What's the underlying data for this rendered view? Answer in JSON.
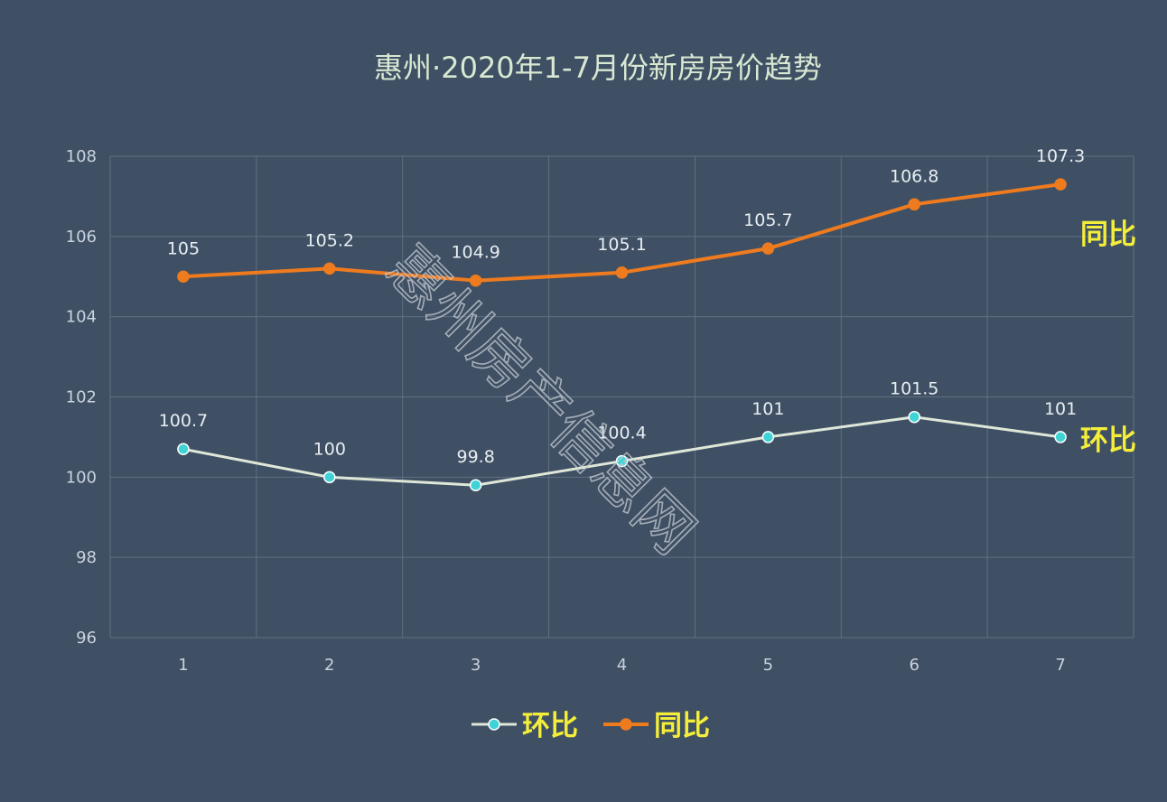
{
  "watermark": "惠州房产信息网",
  "colors": {
    "background": "#3f5064",
    "grid": "#5f7081",
    "huanbi_line": "#dfe8d8",
    "huanbi_marker": "#3fd3d6",
    "tongbi_line": "#ef7b1f",
    "label_yellow": "#f4ee3a"
  },
  "chart_data": {
    "type": "line",
    "title": "惠州·2020年1-7月份新房房价趋势",
    "xlabel": "",
    "ylabel": "",
    "categories": [
      "1",
      "2",
      "3",
      "4",
      "5",
      "6",
      "7"
    ],
    "ylim": [
      96,
      108
    ],
    "yticks": [
      "96",
      "98",
      "100",
      "102",
      "104",
      "106",
      "108"
    ],
    "grid": true,
    "legend_position": "bottom",
    "series": [
      {
        "name": "环比",
        "values": [
          100.7,
          100,
          99.8,
          100.4,
          101,
          101.5,
          101
        ],
        "labels": [
          "100.7",
          "100",
          "99.8",
          "100.4",
          "101",
          "101.5",
          "101"
        ]
      },
      {
        "name": "同比",
        "values": [
          105,
          105.2,
          104.9,
          105.1,
          105.7,
          106.8,
          107.3
        ],
        "labels": [
          "105",
          "105.2",
          "104.9",
          "105.1",
          "105.7",
          "106.8",
          "107.3"
        ]
      }
    ]
  }
}
